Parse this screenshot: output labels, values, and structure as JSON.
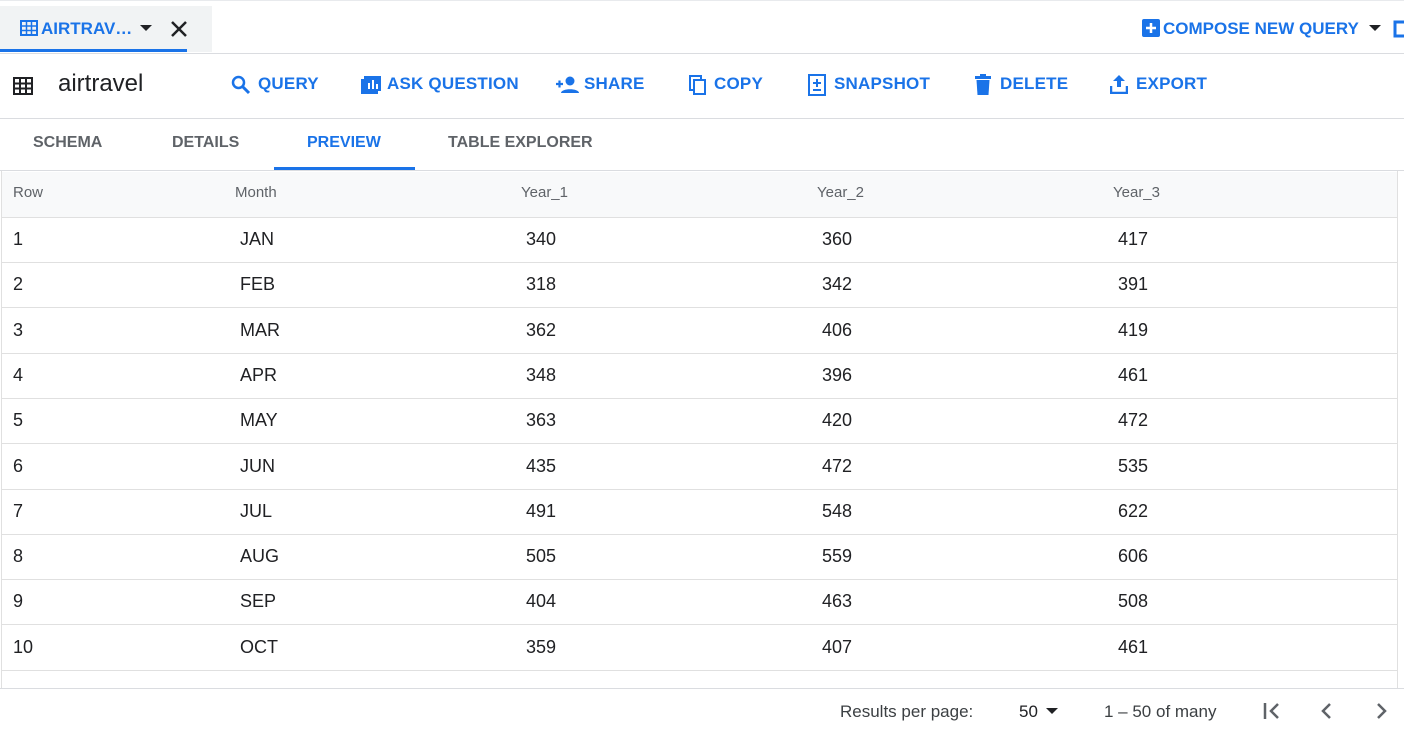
{
  "tab": {
    "title": "AIRTRAV…"
  },
  "toolbar": {
    "compose": "COMPOSE NEW QUERY"
  },
  "header": {
    "title": "airtravel",
    "actions": [
      "QUERY",
      "ASK QUESTION",
      "SHARE",
      "COPY",
      "SNAPSHOT",
      "DELETE",
      "EXPORT"
    ]
  },
  "tabs": {
    "items": [
      "SCHEMA",
      "DETAILS",
      "PREVIEW",
      "TABLE EXPLORER"
    ],
    "active": 2
  },
  "table": {
    "columns": [
      "Row",
      "Month",
      "Year_1",
      "Year_2",
      "Year_3"
    ],
    "rows": [
      [
        1,
        "JAN",
        340,
        360,
        417
      ],
      [
        2,
        "FEB",
        318,
        342,
        391
      ],
      [
        3,
        "MAR",
        362,
        406,
        419
      ],
      [
        4,
        "APR",
        348,
        396,
        461
      ],
      [
        5,
        "MAY",
        363,
        420,
        472
      ],
      [
        6,
        "JUN",
        435,
        472,
        535
      ],
      [
        7,
        "JUL",
        491,
        548,
        622
      ],
      [
        8,
        "AUG",
        505,
        559,
        606
      ],
      [
        9,
        "SEP",
        404,
        463,
        508
      ],
      [
        10,
        "OCT",
        359,
        407,
        461
      ]
    ]
  },
  "footer": {
    "label": "Results per page:",
    "page_size": 50,
    "range": "1 – 50 of many"
  }
}
